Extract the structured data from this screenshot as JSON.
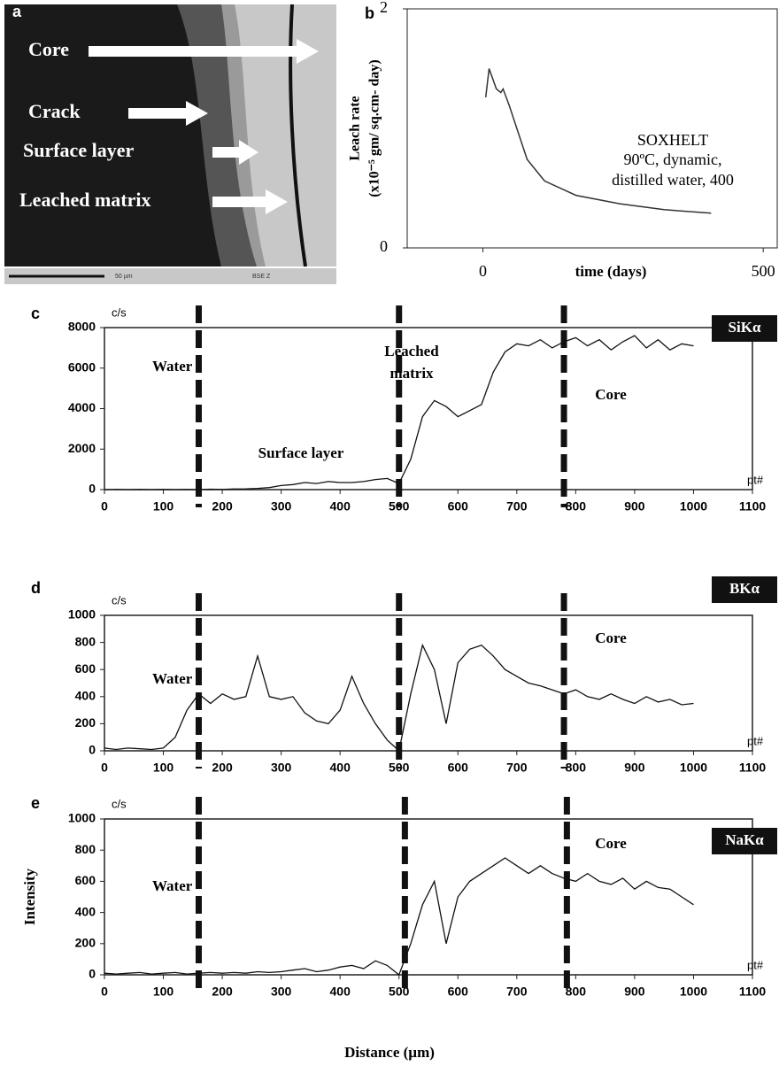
{
  "micrograph": {
    "panel": "a",
    "labels": [
      "Core",
      "Crack",
      "Surface layer",
      "Leached matrix"
    ],
    "scale_bar": "50 µm",
    "detector": "BSE Z"
  },
  "chart_data": [
    {
      "type": "line",
      "panel": "b",
      "ylabel": [
        "Leach rate",
        "(x10⁻⁵ gm/ sq.cm- day)"
      ],
      "xlabel": "time (days)",
      "annotations": [
        "SOXHELT",
        "90ºC, dynamic,",
        "distilled water, 400"
      ],
      "x": [
        5,
        11,
        24,
        32,
        36,
        47,
        79,
        110,
        166,
        244,
        323,
        407
      ],
      "series": [
        {
          "color": "#333333",
          "values": [
            1.26,
            1.5,
            1.33,
            1.3,
            1.33,
            1.19,
            0.74,
            0.56,
            0.44,
            0.37,
            0.32,
            0.29
          ]
        }
      ],
      "xlim": [
        -135,
        525
      ],
      "xticks": [
        0,
        500
      ],
      "ylim": [
        0,
        2
      ],
      "yticks": [
        0,
        2
      ]
    },
    {
      "type": "line",
      "panel": "c",
      "y_unit": "c/s",
      "x_unit": "pt#",
      "label_box": "SiKα",
      "annotations": [
        "Water",
        "Surface layer",
        "Leached",
        "matrix",
        "Core"
      ],
      "markers": [
        160,
        500,
        780
      ],
      "x": [
        0,
        20,
        40,
        60,
        80,
        100,
        120,
        140,
        160,
        180,
        200,
        220,
        240,
        260,
        280,
        300,
        320,
        340,
        360,
        380,
        400,
        420,
        440,
        460,
        480,
        500,
        520,
        540,
        560,
        580,
        600,
        620,
        640,
        660,
        680,
        700,
        720,
        740,
        760,
        780,
        800,
        820,
        840,
        860,
        880,
        900,
        920,
        940,
        960,
        980,
        1000
      ],
      "series": [
        {
          "color": "#111111",
          "values": [
            0,
            10,
            0,
            10,
            0,
            10,
            0,
            10,
            0,
            20,
            10,
            30,
            40,
            60,
            100,
            200,
            250,
            350,
            300,
            400,
            350,
            350,
            400,
            500,
            550,
            300,
            1500,
            3600,
            4400,
            4100,
            3600,
            3900,
            4200,
            5800,
            6800,
            7200,
            7100,
            7400,
            7000,
            7300,
            7500,
            7100,
            7400,
            6900,
            7300,
            7600,
            7000,
            7400,
            6900,
            7200,
            7100
          ]
        }
      ],
      "xlim": [
        0,
        1100
      ],
      "xticks": [
        0,
        100,
        200,
        300,
        400,
        500,
        600,
        700,
        800,
        900,
        1000,
        1100
      ],
      "ylim": [
        0,
        8000
      ],
      "yticks": [
        0,
        2000,
        4000,
        6000,
        8000
      ]
    },
    {
      "type": "line",
      "panel": "d",
      "y_unit": "c/s",
      "x_unit": "pt#",
      "label_box": "BKα",
      "annotations": [
        "Water",
        "Core"
      ],
      "markers": [
        160,
        500,
        780
      ],
      "x": [
        0,
        20,
        40,
        60,
        80,
        100,
        120,
        140,
        160,
        180,
        200,
        220,
        240,
        260,
        280,
        300,
        320,
        340,
        360,
        380,
        400,
        420,
        440,
        460,
        480,
        500,
        520,
        540,
        560,
        580,
        600,
        620,
        640,
        660,
        680,
        700,
        720,
        740,
        760,
        780,
        800,
        820,
        840,
        860,
        880,
        900,
        920,
        940,
        960,
        980,
        1000
      ],
      "series": [
        {
          "color": "#111111",
          "values": [
            20,
            10,
            20,
            15,
            10,
            20,
            100,
            300,
            420,
            350,
            420,
            380,
            400,
            700,
            400,
            380,
            400,
            280,
            220,
            200,
            300,
            550,
            350,
            200,
            80,
            0,
            420,
            780,
            600,
            200,
            650,
            750,
            780,
            700,
            600,
            550,
            500,
            480,
            450,
            420,
            450,
            400,
            380,
            420,
            380,
            350,
            400,
            360,
            380,
            340,
            350
          ]
        }
      ],
      "xlim": [
        0,
        1100
      ],
      "xticks": [
        0,
        100,
        200,
        300,
        400,
        500,
        600,
        700,
        800,
        900,
        1000,
        1100
      ],
      "ylim": [
        0,
        1000
      ],
      "yticks": [
        0,
        200,
        400,
        600,
        800,
        1000
      ]
    },
    {
      "type": "line",
      "panel": "e",
      "y_unit": "c/s",
      "x_unit": "pt#",
      "label_box": "NaKα",
      "ylabel": "Intensity",
      "xlabel": "Distance (µm)",
      "annotations": [
        "Water",
        "Core"
      ],
      "markers": [
        160,
        510,
        785
      ],
      "x": [
        0,
        20,
        40,
        60,
        80,
        100,
        120,
        140,
        160,
        180,
        200,
        220,
        240,
        260,
        280,
        300,
        320,
        340,
        360,
        380,
        400,
        420,
        440,
        460,
        480,
        500,
        520,
        540,
        560,
        580,
        600,
        620,
        640,
        660,
        680,
        700,
        720,
        740,
        760,
        780,
        800,
        820,
        840,
        860,
        880,
        900,
        920,
        940,
        960,
        980,
        1000
      ],
      "series": [
        {
          "color": "#111111",
          "values": [
            10,
            5,
            10,
            15,
            5,
            10,
            15,
            5,
            10,
            15,
            10,
            15,
            10,
            20,
            15,
            20,
            30,
            40,
            20,
            30,
            50,
            60,
            40,
            90,
            60,
            0,
            200,
            450,
            600,
            200,
            500,
            600,
            650,
            700,
            750,
            700,
            650,
            700,
            650,
            620,
            600,
            650,
            600,
            580,
            620,
            550,
            600,
            560,
            550,
            500,
            450
          ]
        }
      ],
      "xlim": [
        0,
        1100
      ],
      "xticks": [
        0,
        100,
        200,
        300,
        400,
        500,
        600,
        700,
        800,
        900,
        1000,
        1100
      ],
      "ylim": [
        0,
        1000
      ],
      "yticks": [
        0,
        200,
        400,
        600,
        800,
        1000
      ]
    }
  ]
}
